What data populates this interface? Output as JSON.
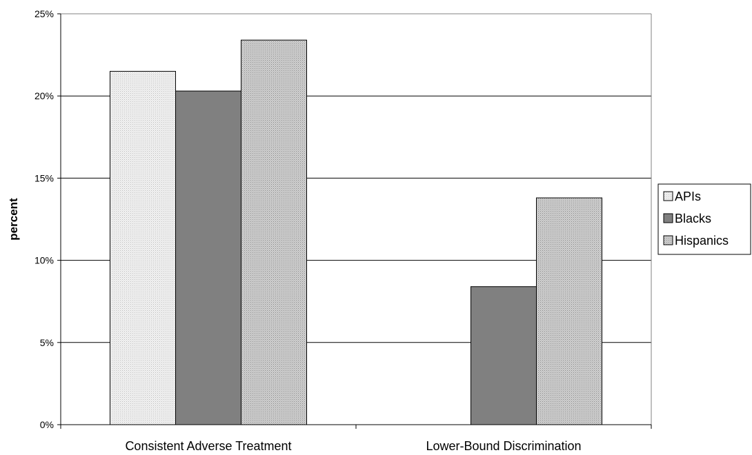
{
  "chart_data": {
    "type": "bar",
    "title": "",
    "xlabel": "",
    "ylabel": "percent",
    "ylim": [
      0,
      25
    ],
    "yticks": [
      0,
      5,
      10,
      15,
      20,
      25
    ],
    "ytick_labels": [
      "0%",
      "5%",
      "10%",
      "15%",
      "20%",
      "25%"
    ],
    "categories": [
      "Consistent Adverse Treatment",
      "Lower-Bound Discrimination"
    ],
    "series": [
      {
        "name": "APIs",
        "values": [
          21.5,
          null
        ],
        "color": "#e6e6e6",
        "pattern": "light-dots"
      },
      {
        "name": "Blacks",
        "values": [
          20.3,
          8.4
        ],
        "color": "#808080",
        "pattern": "solid"
      },
      {
        "name": "Hispanics",
        "values": [
          23.4,
          13.8
        ],
        "color": "#c4c4c4",
        "pattern": "medium-dots"
      }
    ],
    "grid": true,
    "legend_position": "right"
  }
}
